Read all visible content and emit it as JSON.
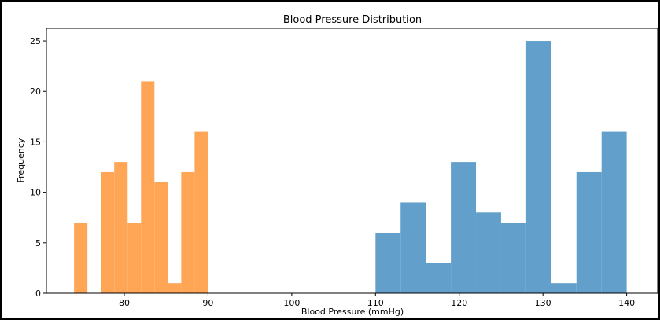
{
  "chart_data": {
    "type": "bar",
    "title": "Blood Pressure Distribution",
    "xlabel": "Blood Pressure (mmHg)",
    "ylabel": "Frequency",
    "xlim": [
      70.7,
      143.7
    ],
    "ylim": [
      0,
      26.25
    ],
    "xticks": [
      80,
      90,
      100,
      110,
      120,
      130,
      140
    ],
    "yticks": [
      0,
      5,
      10,
      15,
      20,
      25
    ],
    "grid": false,
    "series": [
      {
        "color": "#FFA556",
        "bins": [
          {
            "x0": 74.0,
            "x1": 75.6,
            "value": 7
          },
          {
            "x0": 75.6,
            "x1": 77.2,
            "value": 0
          },
          {
            "x0": 77.2,
            "x1": 78.8,
            "value": 12
          },
          {
            "x0": 78.8,
            "x1": 80.4,
            "value": 13
          },
          {
            "x0": 80.4,
            "x1": 82.0,
            "value": 7
          },
          {
            "x0": 82.0,
            "x1": 83.6,
            "value": 21
          },
          {
            "x0": 83.6,
            "x1": 85.2,
            "value": 11
          },
          {
            "x0": 85.2,
            "x1": 86.8,
            "value": 1
          },
          {
            "x0": 86.8,
            "x1": 88.4,
            "value": 12
          },
          {
            "x0": 88.4,
            "x1": 90.0,
            "value": 16
          }
        ]
      },
      {
        "color": "#62A0CB",
        "bins": [
          {
            "x0": 110.0,
            "x1": 113.0,
            "value": 6
          },
          {
            "x0": 113.0,
            "x1": 116.0,
            "value": 9
          },
          {
            "x0": 116.0,
            "x1": 119.0,
            "value": 3
          },
          {
            "x0": 119.0,
            "x1": 122.0,
            "value": 13
          },
          {
            "x0": 122.0,
            "x1": 125.0,
            "value": 8
          },
          {
            "x0": 125.0,
            "x1": 128.0,
            "value": 7
          },
          {
            "x0": 128.0,
            "x1": 131.0,
            "value": 25
          },
          {
            "x0": 131.0,
            "x1": 134.0,
            "value": 1
          },
          {
            "x0": 134.0,
            "x1": 137.0,
            "value": 12
          },
          {
            "x0": 137.0,
            "x1": 140.0,
            "value": 16
          }
        ]
      }
    ]
  }
}
